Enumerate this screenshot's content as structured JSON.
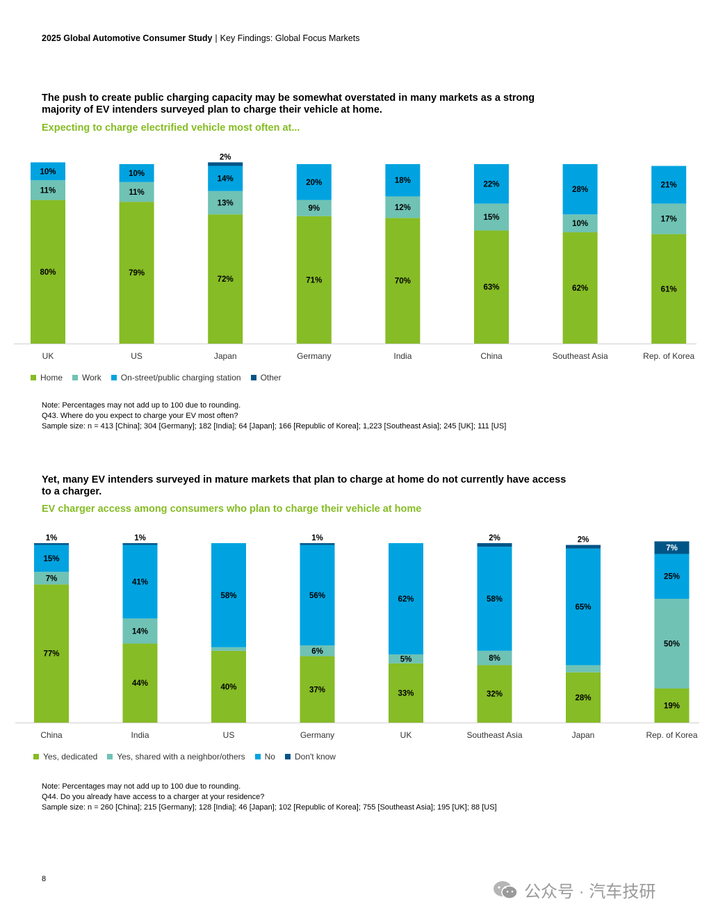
{
  "header": {
    "report_title": "2025 Global Automotive Consumer Study",
    "separator": "|",
    "section": "Key Findings: Global Focus Markets"
  },
  "sections": [
    {
      "headline": "The push to create public charging capacity may be somewhat overstated in many markets as a strong majority of EV intenders surveyed plan to charge their vehicle at home.",
      "subtitle": "Expecting to charge electrified vehicle most often at...",
      "legend": [
        {
          "label": "Home",
          "color": "#86BC25"
        },
        {
          "label": "Work",
          "color": "#6FC2B4"
        },
        {
          "label": "On-street/public charging station",
          "color": "#00A3E0"
        },
        {
          "label": "Other",
          "color": "#005587"
        }
      ],
      "notes": [
        "Note: Percentages may not add up to 100 due to rounding.",
        "Q43. Where do you expect to charge your EV most often?",
        "Sample size: n = 413 [China]; 304 [Germany]; 182 [India]; 64 [Japan]; 166 [Republic of Korea]; 1,223 [Southeast Asia]; 245 [UK]; 111 [US]"
      ]
    },
    {
      "headline": "Yet, many EV intenders surveyed in mature markets that plan to charge at home do not currently have access to a charger.",
      "subtitle": "EV charger access among consumers who plan to charge their vehicle at home",
      "legend": [
        {
          "label": "Yes, dedicated",
          "color": "#86BC25"
        },
        {
          "label": "Yes, shared with a neighbor/others",
          "color": "#6FC2B4"
        },
        {
          "label": "No",
          "color": "#00A3E0"
        },
        {
          "label": "Don't know",
          "color": "#005587"
        }
      ],
      "notes": [
        "Note: Percentages may not add up to 100 due to rounding.",
        "Q44. Do you already have access to a charger at your residence?",
        "Sample size: n = 260 [China]; 215 [Germany]; 128 [India]; 46 [Japan]; 102 [Republic of Korea]; 755 [Southeast Asia]; 195 [UK]; 88 [US]"
      ]
    }
  ],
  "chart_data": [
    {
      "type": "bar",
      "stacked": true,
      "categories": [
        "UK",
        "US",
        "Japan",
        "Germany",
        "India",
        "China",
        "Southeast Asia",
        "Rep. of Korea"
      ],
      "series": [
        {
          "name": "Home",
          "color": "#86BC25",
          "values": [
            80,
            79,
            72,
            71,
            70,
            63,
            62,
            61
          ]
        },
        {
          "name": "Work",
          "color": "#6FC2B4",
          "values": [
            11,
            11,
            13,
            9,
            12,
            15,
            10,
            17
          ]
        },
        {
          "name": "On-street/public charging station",
          "color": "#00A3E0",
          "values": [
            10,
            10,
            14,
            20,
            18,
            22,
            28,
            21
          ]
        },
        {
          "name": "Other",
          "color": "#005587",
          "values": [
            0,
            0,
            2,
            0,
            0,
            0,
            0,
            0
          ]
        }
      ],
      "ylim": [
        0,
        100
      ],
      "legend_position": "bottom-left",
      "grid": false
    },
    {
      "type": "bar",
      "stacked": true,
      "categories": [
        "China",
        "India",
        "US",
        "Germany",
        "UK",
        "Southeast Asia",
        "Japan",
        "Rep. of Korea"
      ],
      "series": [
        {
          "name": "Yes, dedicated",
          "color": "#86BC25",
          "values": [
            77,
            44,
            40,
            37,
            33,
            32,
            28,
            19
          ]
        },
        {
          "name": "Yes, shared with a neighbor/others",
          "color": "#6FC2B4",
          "values": [
            7,
            14,
            2,
            6,
            5,
            8,
            4,
            50
          ]
        },
        {
          "name": "No",
          "color": "#00A3E0",
          "values": [
            15,
            41,
            58,
            56,
            62,
            58,
            65,
            25
          ]
        },
        {
          "name": "Don't know",
          "color": "#005587",
          "values": [
            1,
            1,
            0,
            1,
            0,
            2,
            2,
            7
          ]
        }
      ],
      "ylim": [
        0,
        100
      ],
      "legend_position": "bottom-left",
      "grid": false
    }
  ],
  "page_number": "8",
  "watermark": {
    "text": "公众号 · 汽车技研",
    "icon": "wechat-icon"
  }
}
